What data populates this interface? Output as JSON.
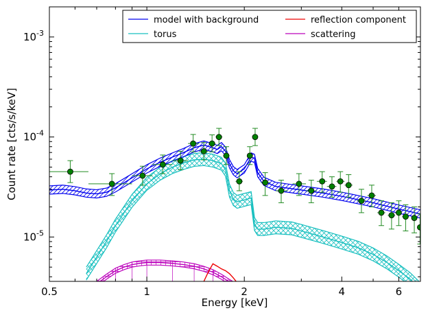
{
  "chart_data": {
    "type": "line",
    "title": "",
    "xlabel": "Energy [keV]",
    "ylabel": "Count rate [cts/s/keV]",
    "xscale": "log",
    "yscale": "log",
    "xlim": [
      0.5,
      7.0
    ],
    "ylim": [
      3.6e-06,
      0.002
    ],
    "grid": false,
    "legend_position": "top-right",
    "legend_columns": 2,
    "x_ticks": [
      {
        "value": 0.5,
        "label": "0.5"
      },
      {
        "value": 1,
        "label": "1"
      },
      {
        "value": 2,
        "label": "2"
      },
      {
        "value": 4,
        "label": "4"
      },
      {
        "value": 6,
        "label": "6"
      }
    ],
    "y_ticks": [
      {
        "value": 1e-05,
        "base": "10",
        "exp": "-5"
      },
      {
        "value": 0.0001,
        "base": "10",
        "exp": "-4"
      },
      {
        "value": 0.001,
        "base": "10",
        "exp": "-3"
      }
    ],
    "series": [
      {
        "name": "model with background",
        "color": "#0000ee",
        "band_style": "hatch",
        "x": [
          0.5,
          0.55,
          0.6,
          0.65,
          0.7,
          0.75,
          0.8,
          0.9,
          1.0,
          1.1,
          1.2,
          1.3,
          1.4,
          1.5,
          1.6,
          1.65,
          1.7,
          1.75,
          1.8,
          1.85,
          1.9,
          2.0,
          2.1,
          2.15,
          2.2,
          2.3,
          2.5,
          3.0,
          3.5,
          4.0,
          5.0,
          6.0,
          7.0
        ],
        "y": [
          2.95e-05,
          3e-05,
          2.9e-05,
          2.75e-05,
          2.7e-05,
          2.8e-05,
          3.1e-05,
          3.9e-05,
          4.8e-05,
          5.6e-05,
          6.3e-05,
          7e-05,
          7.8e-05,
          8.3e-05,
          7.8e-05,
          7.5e-05,
          8e-05,
          7.2e-05,
          5.4e-05,
          4.6e-05,
          4.3e-05,
          4.8e-05,
          6.3e-05,
          6.1e-05,
          4.4e-05,
          3.6e-05,
          3.2e-05,
          2.95e-05,
          2.75e-05,
          2.55e-05,
          2.2e-05,
          1.9e-05,
          1.7e-05
        ],
        "band_factor": 1.1
      },
      {
        "name": "torus",
        "color": "#17bfbf",
        "band_style": "crosshatch",
        "x": [
          0.65,
          0.7,
          0.75,
          0.8,
          0.9,
          1.0,
          1.1,
          1.2,
          1.3,
          1.4,
          1.5,
          1.6,
          1.65,
          1.7,
          1.75,
          1.8,
          1.85,
          1.9,
          2.0,
          2.1,
          2.15,
          2.2,
          2.3,
          2.5,
          2.8,
          3.0,
          3.5,
          4.0,
          4.5,
          5.0,
          5.5,
          6.0,
          6.5,
          7.0
        ],
        "y": [
          4.3e-06,
          6.3e-06,
          9e-06,
          1.3e-05,
          2.3e-05,
          3.4e-05,
          4.3e-05,
          5e-05,
          5.5e-05,
          5.9e-05,
          6e-05,
          5.8e-05,
          5.6e-05,
          5.4e-05,
          4.7e-05,
          2.9e-05,
          2.4e-05,
          2.25e-05,
          2.35e-05,
          2.45e-05,
          1.35e-05,
          1.2e-05,
          1.2e-05,
          1.25e-05,
          1.22e-05,
          1.15e-05,
          1e-05,
          8.8e-06,
          7.8e-06,
          6.7e-06,
          5.6e-06,
          4.6e-06,
          3.8e-06,
          3e-06
        ],
        "band_factor": 1.16
      },
      {
        "name": "reflection component",
        "color": "#ee0000",
        "x": [
          1.5,
          1.55,
          1.6,
          1.65,
          1.7,
          1.75,
          1.8,
          1.85,
          1.9
        ],
        "y": [
          3.6e-06,
          4.5e-06,
          5.4e-06,
          5.1e-06,
          4.8e-06,
          4.6e-06,
          4.3e-06,
          3.9e-06,
          3.5e-06
        ]
      },
      {
        "name": "scattering",
        "color": "#bb00bb",
        "band_style": "grid",
        "x": [
          0.7,
          0.75,
          0.8,
          0.85,
          0.9,
          0.95,
          1.0,
          1.1,
          1.2,
          1.3,
          1.4,
          1.5,
          1.6,
          1.7,
          1.8,
          1.9
        ],
        "y": [
          3.4e-06,
          4e-06,
          4.6e-06,
          5e-06,
          5.3e-06,
          5.45e-06,
          5.55e-06,
          5.55e-06,
          5.45e-06,
          5.3e-06,
          5.1e-06,
          4.8e-06,
          4.45e-06,
          4e-06,
          3.55e-06,
          3.2e-06
        ],
        "band_factor": 1.06
      }
    ],
    "data_points": {
      "color": "#228b22",
      "points": [
        {
          "x": 0.58,
          "y": 4.5e-05,
          "xlo": 0.5,
          "xhi": 0.66,
          "ylo": 3.5e-05,
          "yhi": 5.8e-05
        },
        {
          "x": 0.78,
          "y": 3.4e-05,
          "xlo": 0.66,
          "xhi": 0.9,
          "ylo": 2.6e-05,
          "yhi": 4.3e-05
        },
        {
          "x": 0.97,
          "y": 4.1e-05,
          "xlo": 0.9,
          "xhi": 1.04,
          "ylo": 3.3e-05,
          "yhi": 5.1e-05
        },
        {
          "x": 1.12,
          "y": 5.3e-05,
          "xlo": 1.04,
          "xhi": 1.2,
          "ylo": 4.3e-05,
          "yhi": 6.6e-05
        },
        {
          "x": 1.27,
          "y": 5.8e-05,
          "xlo": 1.2,
          "xhi": 1.34,
          "ylo": 4.7e-05,
          "yhi": 7.2e-05
        },
        {
          "x": 1.39,
          "y": 8.6e-05,
          "xlo": 1.34,
          "xhi": 1.45,
          "ylo": 7.1e-05,
          "yhi": 0.000106
        },
        {
          "x": 1.5,
          "y": 7.2e-05,
          "xlo": 1.45,
          "xhi": 1.55,
          "ylo": 5.9e-05,
          "yhi": 8.8e-05
        },
        {
          "x": 1.59,
          "y": 8.6e-05,
          "xlo": 1.55,
          "xhi": 1.63,
          "ylo": 7.1e-05,
          "yhi": 0.000105
        },
        {
          "x": 1.67,
          "y": 0.0001,
          "xlo": 1.63,
          "xhi": 1.71,
          "ylo": 8.2e-05,
          "yhi": 0.000122
        },
        {
          "x": 1.76,
          "y": 6.5e-05,
          "xlo": 1.72,
          "xhi": 1.8,
          "ylo": 5.3e-05,
          "yhi": 8e-05
        },
        {
          "x": 1.93,
          "y": 3.6e-05,
          "xlo": 1.88,
          "xhi": 1.98,
          "ylo": 2.9e-05,
          "yhi": 4.5e-05
        },
        {
          "x": 2.08,
          "y": 6.5e-05,
          "xlo": 2.04,
          "xhi": 2.12,
          "ylo": 5.3e-05,
          "yhi": 8e-05
        },
        {
          "x": 2.16,
          "y": 0.0001,
          "xlo": 2.12,
          "xhi": 2.2,
          "ylo": 8.2e-05,
          "yhi": 0.000122
        },
        {
          "x": 2.32,
          "y": 3.5e-05,
          "xlo": 2.25,
          "xhi": 2.4,
          "ylo": 2.6e-05,
          "yhi": 4.4e-05
        },
        {
          "x": 2.6,
          "y": 2.9e-05,
          "xlo": 2.5,
          "xhi": 2.72,
          "ylo": 2.2e-05,
          "yhi": 3.7e-05
        },
        {
          "x": 2.95,
          "y": 3.4e-05,
          "xlo": 2.82,
          "xhi": 3.1,
          "ylo": 2.6e-05,
          "yhi": 4.3e-05
        },
        {
          "x": 3.22,
          "y": 2.9e-05,
          "xlo": 3.1,
          "xhi": 3.35,
          "ylo": 2.2e-05,
          "yhi": 3.7e-05
        },
        {
          "x": 3.48,
          "y": 3.6e-05,
          "xlo": 3.35,
          "xhi": 3.6,
          "ylo": 2.8e-05,
          "yhi": 4.5e-05
        },
        {
          "x": 3.73,
          "y": 3.2e-05,
          "xlo": 3.6,
          "xhi": 3.85,
          "ylo": 2.5e-05,
          "yhi": 4e-05
        },
        {
          "x": 3.96,
          "y": 3.6e-05,
          "xlo": 3.85,
          "xhi": 4.08,
          "ylo": 2.8e-05,
          "yhi": 4.5e-05
        },
        {
          "x": 4.2,
          "y": 3.3e-05,
          "xlo": 4.08,
          "xhi": 4.32,
          "ylo": 2.5e-05,
          "yhi": 4.2e-05
        },
        {
          "x": 4.6,
          "y": 2.3e-05,
          "xlo": 4.45,
          "xhi": 4.75,
          "ylo": 1.75e-05,
          "yhi": 3e-05
        },
        {
          "x": 4.95,
          "y": 2.6e-05,
          "xlo": 4.8,
          "xhi": 5.1,
          "ylo": 2e-05,
          "yhi": 3.3e-05
        },
        {
          "x": 5.3,
          "y": 1.75e-05,
          "xlo": 5.15,
          "xhi": 5.45,
          "ylo": 1.3e-05,
          "yhi": 2.3e-05
        },
        {
          "x": 5.7,
          "y": 1.65e-05,
          "xlo": 5.55,
          "xhi": 5.85,
          "ylo": 1.2e-05,
          "yhi": 2.2e-05
        },
        {
          "x": 6.0,
          "y": 1.75e-05,
          "xlo": 5.85,
          "xhi": 6.1,
          "ylo": 1.3e-05,
          "yhi": 2.3e-05
        },
        {
          "x": 6.3,
          "y": 1.6e-05,
          "xlo": 6.15,
          "xhi": 6.45,
          "ylo": 1.15e-05,
          "yhi": 2.1e-05
        },
        {
          "x": 6.7,
          "y": 1.55e-05,
          "xlo": 6.55,
          "xhi": 6.85,
          "ylo": 1.1e-05,
          "yhi": 2e-05
        },
        {
          "x": 6.98,
          "y": 1.25e-05,
          "xlo": 6.9,
          "xhi": 7.0,
          "ylo": 8.5e-06,
          "yhi": 1.7e-05
        }
      ]
    }
  }
}
